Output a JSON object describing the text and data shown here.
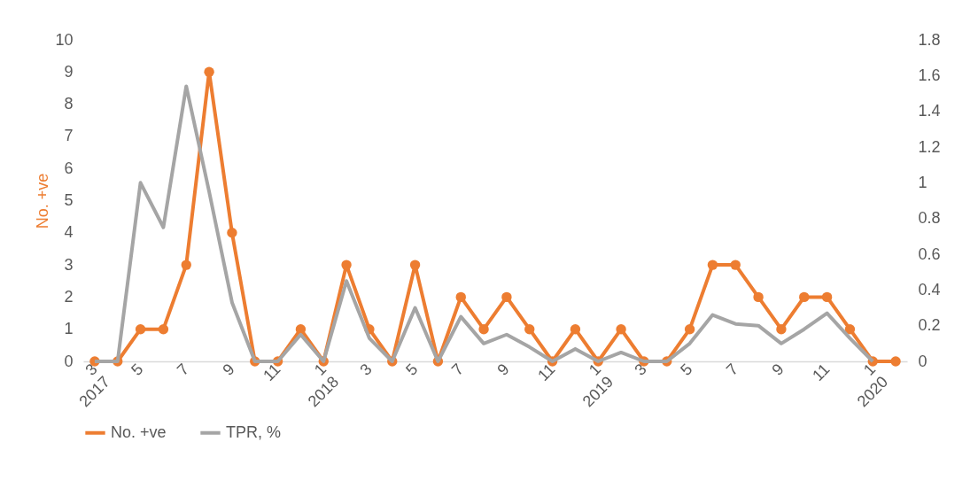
{
  "chart_data": {
    "type": "line",
    "ylabel": "No. +ve",
    "categories": [
      "3\n2017",
      null,
      "5",
      null,
      "7",
      null,
      "9",
      null,
      "11",
      null,
      "1\n2018",
      null,
      "3",
      null,
      "5",
      null,
      "7",
      null,
      "9",
      null,
      "11",
      null,
      "1\n2019",
      null,
      "3",
      null,
      "5",
      null,
      "7",
      null,
      "9",
      null,
      "11",
      null,
      "1\n2020",
      null
    ],
    "series": [
      {
        "name": "No. +ve",
        "color": "#ed7d31",
        "marker": "circle",
        "values": [
          0,
          0,
          1,
          1,
          3,
          9,
          4,
          0,
          0,
          1,
          0,
          3,
          1,
          0,
          3,
          0,
          2,
          1,
          2,
          1,
          0,
          1,
          0,
          1,
          0,
          0,
          1,
          3,
          3,
          2,
          1,
          2,
          2,
          1,
          0,
          0
        ]
      },
      {
        "name": "TPR, %",
        "color": "#a5a5a5",
        "marker": "none",
        "axis": "y2",
        "values": [
          0,
          0,
          1.0,
          0.75,
          1.54,
          0.95,
          0.33,
          0,
          0,
          0.15,
          0,
          0.45,
          0.13,
          0,
          0.3,
          0,
          0.25,
          0.1,
          0.15,
          0.08,
          0,
          0.07,
          0,
          0.05,
          0,
          0,
          0.1,
          0.26,
          0.21,
          0.2,
          0.1,
          0.18,
          0.27,
          0.13,
          0,
          null
        ]
      }
    ],
    "ylim": [
      0,
      10
    ],
    "yticks": [
      0,
      1,
      2,
      3,
      4,
      5,
      6,
      7,
      8,
      9,
      10
    ],
    "y2lim": [
      0,
      1.8
    ],
    "y2ticks": [
      0,
      0.2,
      0.4,
      0.6,
      0.8,
      1,
      1.2,
      1.4,
      1.6,
      1.8
    ],
    "grid": false,
    "legend": "bottom",
    "line_style": "solid"
  }
}
